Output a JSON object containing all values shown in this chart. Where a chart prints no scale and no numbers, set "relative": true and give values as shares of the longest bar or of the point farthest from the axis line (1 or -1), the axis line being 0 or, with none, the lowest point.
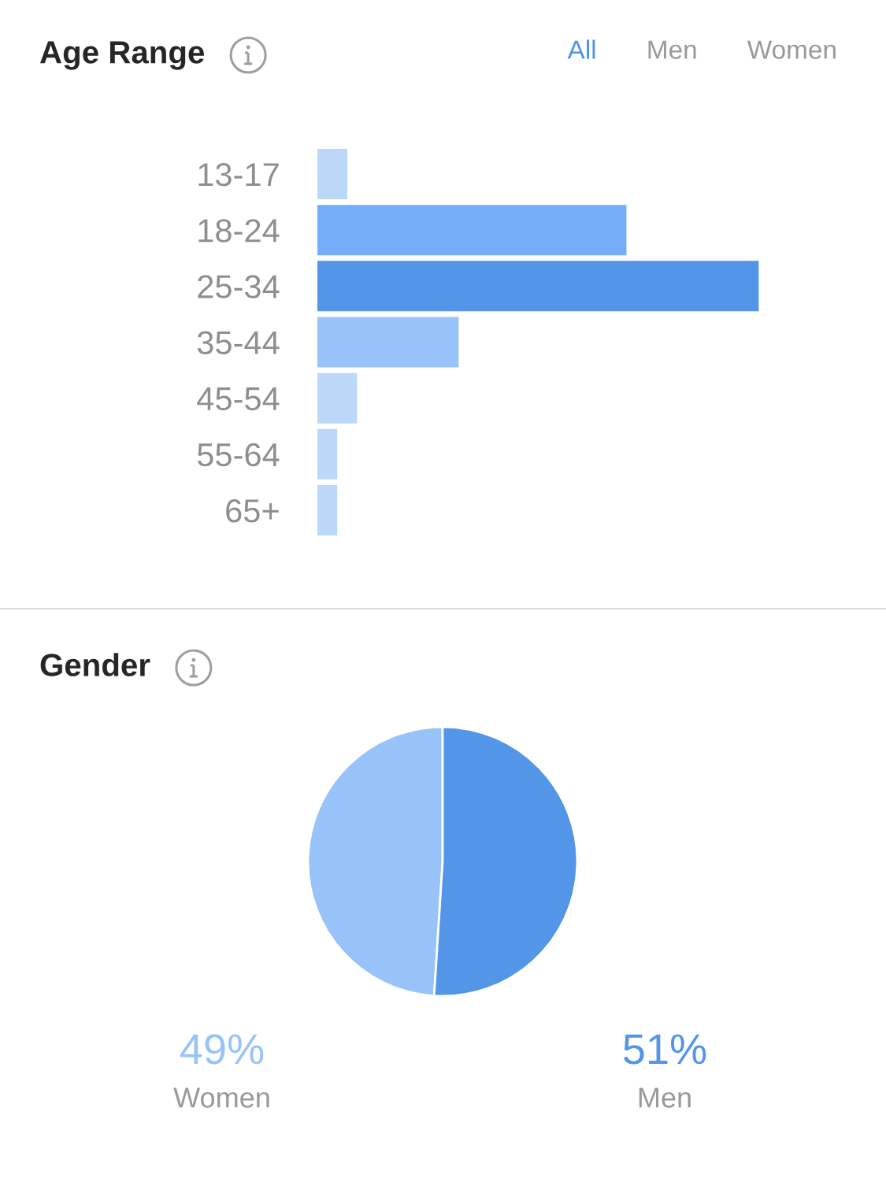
{
  "chart_data": [
    {
      "type": "bar",
      "title": "Age Range",
      "orientation": "horizontal",
      "relative": true,
      "categories": [
        "13-17",
        "18-24",
        "25-34",
        "35-44",
        "45-54",
        "55-64",
        "65+"
      ],
      "values": [
        0.068,
        0.7,
        1,
        0.32,
        0.09,
        0.045,
        0.045
      ],
      "colors": [
        "#bcd8f8",
        "#74aef7",
        "#5395e6",
        "#98c3f8",
        "#bcd8f8",
        "#bcd8f8",
        "#bcd8f8"
      ],
      "annotations": [
        "All",
        "Men",
        "Women"
      ]
    },
    {
      "type": "pie",
      "title": "Gender",
      "categories": [
        "Women",
        "Men"
      ],
      "values": [
        49,
        51
      ],
      "colors": [
        "#98c3f8",
        "#5395e6"
      ],
      "value_labels": [
        "49%",
        "51%"
      ]
    }
  ]
}
